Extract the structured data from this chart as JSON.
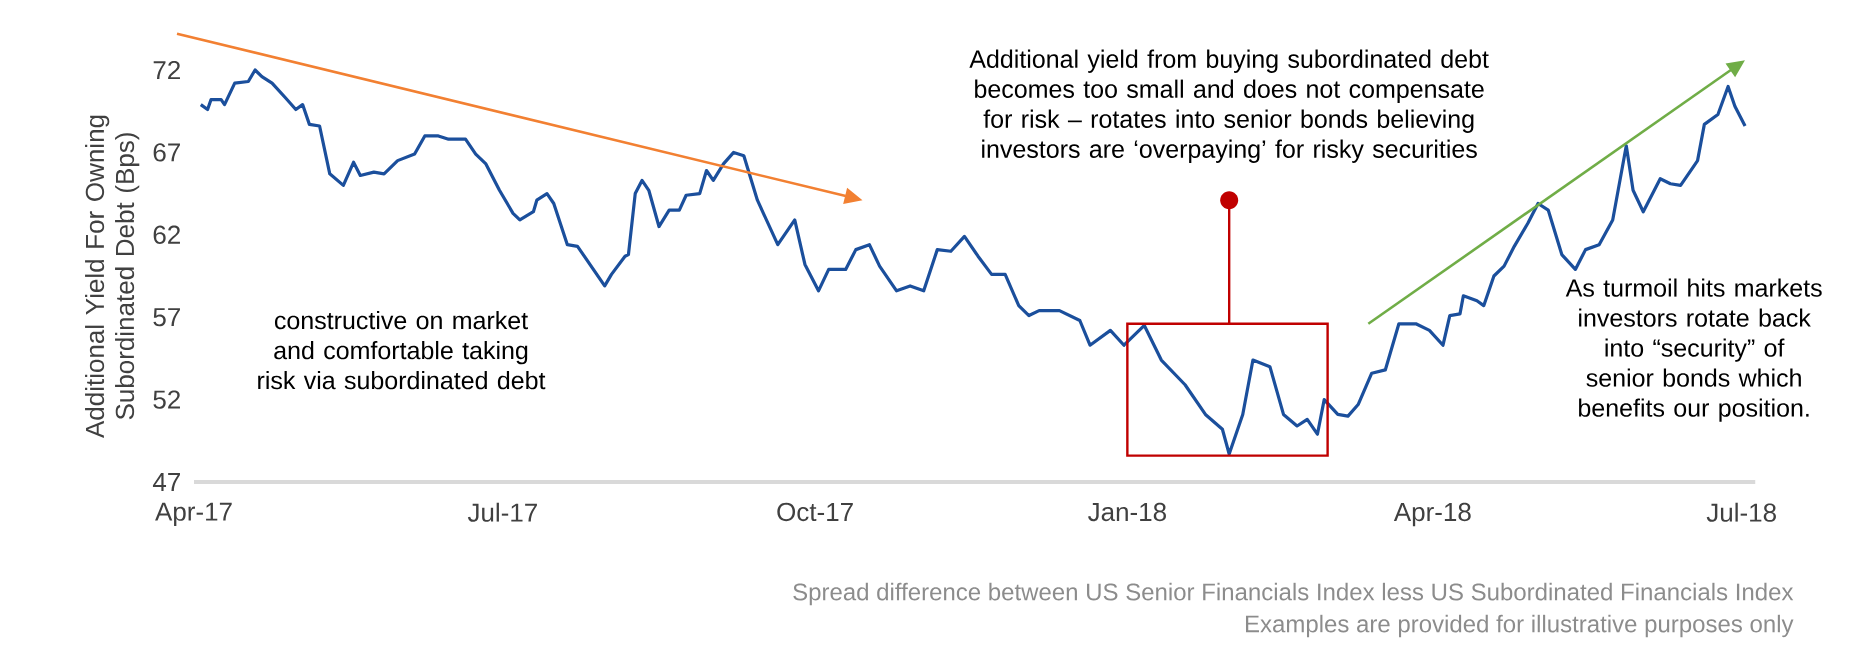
{
  "chart_data": {
    "type": "line",
    "ylabel": "Additional Yield For Owning Subordinated Debt (Bps)",
    "xlim": [
      "2017-04-01",
      "2018-07-05"
    ],
    "xticks": [
      {
        "value": "2017-04-01",
        "label": "Apr-17"
      },
      {
        "value": "2017-07-01",
        "label": "Jul-17"
      },
      {
        "value": "2017-10-01",
        "label": "Oct-17"
      },
      {
        "value": "2018-01-01",
        "label": "Jan-18"
      },
      {
        "value": "2018-04-01",
        "label": "Apr-18"
      },
      {
        "value": "2018-07-01",
        "label": "Jul-18"
      }
    ],
    "ylim": [
      47,
      72
    ],
    "yticks": [
      47,
      52,
      57,
      62,
      67,
      72
    ],
    "x": [
      "2017-04-03",
      "2017-04-05",
      "2017-04-06",
      "2017-04-09",
      "2017-04-10",
      "2017-04-13",
      "2017-04-17",
      "2017-04-19",
      "2017-04-21",
      "2017-04-24",
      "2017-04-28",
      "2017-05-01",
      "2017-05-03",
      "2017-05-05",
      "2017-05-08",
      "2017-05-11",
      "2017-05-15",
      "2017-05-18",
      "2017-05-20",
      "2017-05-24",
      "2017-05-27",
      "2017-05-31",
      "2017-06-05",
      "2017-06-08",
      "2017-06-12",
      "2017-06-15",
      "2017-06-20",
      "2017-06-23",
      "2017-06-26",
      "2017-06-30",
      "2017-07-04",
      "2017-07-06",
      "2017-07-10",
      "2017-07-11",
      "2017-07-14",
      "2017-07-16",
      "2017-07-20",
      "2017-07-23",
      "2017-07-31",
      "2017-08-02",
      "2017-08-06",
      "2017-08-07",
      "2017-08-09",
      "2017-08-11",
      "2017-08-13",
      "2017-08-16",
      "2017-08-19",
      "2017-08-22",
      "2017-08-24",
      "2017-08-28",
      "2017-08-30",
      "2017-09-01",
      "2017-09-04",
      "2017-09-07",
      "2017-09-10",
      "2017-09-14",
      "2017-09-20",
      "2017-09-25",
      "2017-09-28",
      "2017-10-02",
      "2017-10-05",
      "2017-10-10",
      "2017-10-13",
      "2017-10-17",
      "2017-10-20",
      "2017-10-25",
      "2017-10-29",
      "2017-11-02",
      "2017-11-06",
      "2017-11-10",
      "2017-11-14",
      "2017-11-18",
      "2017-11-22",
      "2017-11-26",
      "2017-11-30",
      "2017-12-03",
      "2017-12-06",
      "2017-12-12",
      "2017-12-18",
      "2017-12-21",
      "2017-12-27",
      "2017-12-31",
      "2018-01-06",
      "2018-01-11",
      "2018-01-18",
      "2018-01-24",
      "2018-01-29",
      "2018-01-31",
      "2018-02-04",
      "2018-02-07",
      "2018-02-12",
      "2018-02-16",
      "2018-02-20",
      "2018-02-23",
      "2018-02-26",
      "2018-02-28",
      "2018-03-04",
      "2018-03-07",
      "2018-03-10",
      "2018-03-14",
      "2018-03-18",
      "2018-03-22",
      "2018-03-27",
      "2018-03-31",
      "2018-04-04",
      "2018-04-06",
      "2018-04-09",
      "2018-04-10",
      "2018-04-14",
      "2018-04-16",
      "2018-04-19",
      "2018-04-22",
      "2018-04-25",
      "2018-04-29",
      "2018-05-02",
      "2018-05-05",
      "2018-05-09",
      "2018-05-13",
      "2018-05-16",
      "2018-05-20",
      "2018-05-24",
      "2018-05-28",
      "2018-05-30",
      "2018-06-02",
      "2018-06-07",
      "2018-06-10",
      "2018-06-13",
      "2018-06-17",
      "2018-06-18",
      "2018-06-20",
      "2018-06-24",
      "2018-06-27",
      "2018-06-29",
      "2018-07-02"
    ],
    "series": [
      {
        "color": "#1b4f9c",
        "values": [
          69.9,
          69.6,
          70.2,
          70.2,
          69.9,
          71.2,
          71.3,
          72.0,
          71.6,
          71.2,
          70.3,
          69.6,
          69.9,
          68.7,
          68.6,
          65.7,
          65.0,
          66.4,
          65.6,
          65.8,
          65.7,
          66.5,
          66.9,
          68.0,
          68.0,
          67.8,
          67.8,
          66.9,
          66.3,
          64.7,
          63.3,
          62.9,
          63.4,
          64.1,
          64.5,
          63.9,
          61.4,
          61.3,
          58.9,
          59.6,
          60.7,
          60.8,
          64.5,
          65.3,
          64.7,
          62.5,
          63.5,
          63.5,
          64.4,
          64.5,
          65.9,
          65.3,
          66.3,
          67.0,
          66.8,
          64.1,
          61.4,
          62.9,
          60.2,
          58.6,
          59.9,
          59.9,
          61.1,
          61.4,
          60.1,
          58.6,
          58.9,
          58.6,
          61.1,
          61.0,
          61.9,
          60.7,
          59.6,
          59.6,
          57.7,
          57.1,
          57.4,
          57.4,
          56.8,
          55.3,
          56.2,
          55.3,
          56.5,
          54.4,
          52.9,
          51.1,
          50.2,
          48.7,
          51.1,
          54.4,
          54.0,
          51.1,
          50.4,
          50.8,
          49.9,
          52.0,
          51.1,
          51.0,
          51.7,
          53.6,
          53.8,
          56.6,
          56.6,
          56.2,
          55.3,
          57.1,
          57.2,
          58.3,
          58.0,
          57.7,
          59.5,
          60.1,
          61.3,
          62.7,
          63.9,
          63.5,
          60.8,
          59.9,
          61.1,
          61.4,
          62.9,
          67.4,
          64.7,
          63.4,
          65.4,
          65.1,
          65.0,
          66.2,
          66.5,
          68.7,
          69.3,
          71.0,
          69.8,
          68.6
        ]
      }
    ],
    "annotations": [
      "constructive on market and comfortable taking risk via subordinated debt",
      "Additional yield from buying subordinated debt becomes too small and does not compensate for risk – rotates into senior bonds believing investors are ‘overpaying’ for risky securities",
      "As turmoil hits markets investors rotate back into “security” of senior bonds which benefits our position.",
      "Spread difference between US Senior Financials Index less US Subordinated Financials Index",
      "Examples are provided for illustrative purposes only"
    ]
  }
}
